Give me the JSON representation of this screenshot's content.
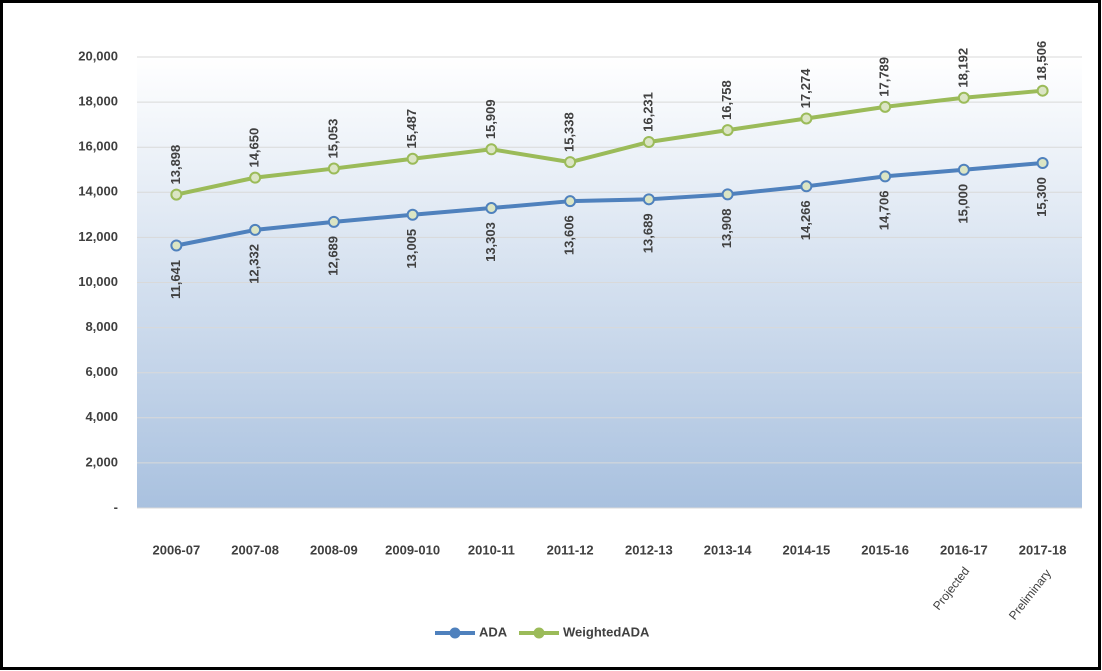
{
  "chart_data": {
    "type": "line",
    "categories": [
      "2006-07",
      "2007-08",
      "2008-09",
      "2009-010",
      "2010-11",
      "2011-12",
      "2012-13",
      "2013-14",
      "2014-15",
      "2015-16",
      "2016-17",
      "2017-18"
    ],
    "series": [
      {
        "name": "ADA",
        "color": "#4f81bd",
        "values": [
          11641,
          12332,
          12689,
          13005,
          13303,
          13606,
          13689,
          13908,
          14266,
          14706,
          15000,
          15300
        ],
        "value_labels": [
          "11,641",
          "12,332",
          "12,689",
          "13,005",
          "13,303",
          "13,606",
          "13,689",
          "13,908",
          "14,266",
          "14,706",
          "15,000",
          "15,300"
        ]
      },
      {
        "name": "WeightedADA",
        "color": "#9bbb59",
        "values": [
          13898,
          14650,
          15053,
          15487,
          15909,
          15338,
          16231,
          16758,
          17274,
          17789,
          18192,
          18506
        ],
        "value_labels": [
          "13,898",
          "14,650",
          "15,053",
          "15,487",
          "15,909",
          "15,338",
          "16,231",
          "16,758",
          "17,274",
          "17,789",
          "18,192",
          "18,506"
        ]
      }
    ],
    "annotations": [
      {
        "text": "Projected",
        "x": "2016-17"
      },
      {
        "text": "Preliminary",
        "x": "2017-18"
      }
    ],
    "ylim": [
      0,
      20000
    ],
    "yticks": [
      {
        "value": 0,
        "label": "-"
      },
      {
        "value": 2000,
        "label": "2,000"
      },
      {
        "value": 4000,
        "label": "4,000"
      },
      {
        "value": 6000,
        "label": "6,000"
      },
      {
        "value": 8000,
        "label": "8,000"
      },
      {
        "value": 10000,
        "label": "10,000"
      },
      {
        "value": 12000,
        "label": "12,000"
      },
      {
        "value": 14000,
        "label": "14,000"
      },
      {
        "value": 16000,
        "label": "16,000"
      },
      {
        "value": 18000,
        "label": "18,000"
      },
      {
        "value": 20000,
        "label": "20,000"
      }
    ],
    "grid": true,
    "legend": "bottom"
  }
}
